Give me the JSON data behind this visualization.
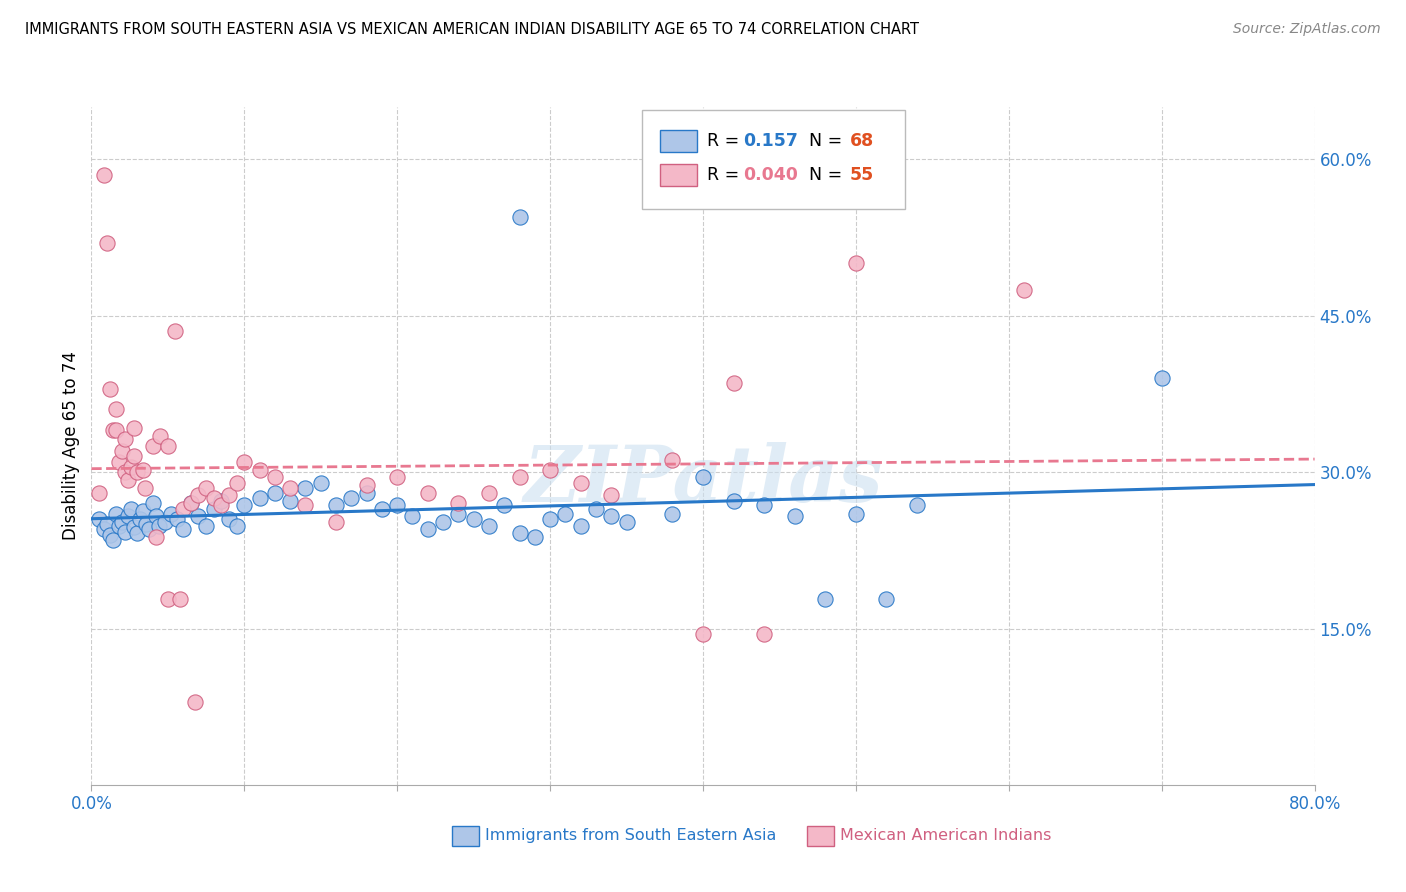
{
  "title": "IMMIGRANTS FROM SOUTH EASTERN ASIA VS MEXICAN AMERICAN INDIAN DISABILITY AGE 65 TO 74 CORRELATION CHART",
  "source": "Source: ZipAtlas.com",
  "ylabel": "Disability Age 65 to 74",
  "xlim": [
    0.0,
    0.8
  ],
  "ylim": [
    0.0,
    0.65
  ],
  "xtick_positions": [
    0.0,
    0.1,
    0.2,
    0.3,
    0.4,
    0.5,
    0.6,
    0.7,
    0.8
  ],
  "xticklabels": [
    "0.0%",
    "",
    "",
    "",
    "",
    "",
    "",
    "",
    "80.0%"
  ],
  "ytick_positions": [
    0.15,
    0.3,
    0.45,
    0.6
  ],
  "yticklabels_right": [
    "15.0%",
    "30.0%",
    "45.0%",
    "60.0%"
  ],
  "blue_color": "#aec6e8",
  "pink_color": "#f4b8c8",
  "blue_line_color": "#2878c8",
  "pink_line_color": "#e87890",
  "pink_edge_color": "#d06080",
  "legend_blue_R": "0.157",
  "legend_blue_N": "68",
  "legend_pink_R": "0.040",
  "legend_pink_N": "55",
  "watermark": "ZIPatlas",
  "grid_color": "#cccccc",
  "blue_scatter_x": [
    0.005,
    0.008,
    0.01,
    0.012,
    0.014,
    0.016,
    0.018,
    0.02,
    0.022,
    0.024,
    0.026,
    0.028,
    0.03,
    0.032,
    0.034,
    0.036,
    0.038,
    0.04,
    0.042,
    0.044,
    0.048,
    0.052,
    0.056,
    0.06,
    0.065,
    0.07,
    0.075,
    0.08,
    0.085,
    0.09,
    0.095,
    0.1,
    0.11,
    0.12,
    0.13,
    0.14,
    0.15,
    0.16,
    0.17,
    0.18,
    0.19,
    0.2,
    0.21,
    0.22,
    0.23,
    0.24,
    0.25,
    0.26,
    0.27,
    0.28,
    0.29,
    0.3,
    0.31,
    0.32,
    0.33,
    0.34,
    0.35,
    0.38,
    0.4,
    0.42,
    0.44,
    0.46,
    0.48,
    0.5,
    0.52,
    0.54,
    0.28,
    0.7
  ],
  "blue_scatter_y": [
    0.255,
    0.245,
    0.25,
    0.24,
    0.235,
    0.26,
    0.248,
    0.252,
    0.243,
    0.258,
    0.265,
    0.247,
    0.242,
    0.255,
    0.263,
    0.25,
    0.245,
    0.27,
    0.258,
    0.248,
    0.252,
    0.26,
    0.255,
    0.245,
    0.27,
    0.258,
    0.248,
    0.265,
    0.272,
    0.255,
    0.248,
    0.268,
    0.275,
    0.28,
    0.272,
    0.285,
    0.29,
    0.268,
    0.275,
    0.28,
    0.265,
    0.268,
    0.258,
    0.245,
    0.252,
    0.26,
    0.255,
    0.248,
    0.268,
    0.242,
    0.238,
    0.255,
    0.26,
    0.248,
    0.265,
    0.258,
    0.252,
    0.26,
    0.295,
    0.272,
    0.268,
    0.258,
    0.178,
    0.26,
    0.178,
    0.268,
    0.545,
    0.39
  ],
  "pink_scatter_x": [
    0.005,
    0.008,
    0.01,
    0.012,
    0.014,
    0.016,
    0.018,
    0.02,
    0.022,
    0.024,
    0.026,
    0.028,
    0.03,
    0.035,
    0.04,
    0.045,
    0.05,
    0.055,
    0.06,
    0.065,
    0.07,
    0.075,
    0.08,
    0.085,
    0.09,
    0.095,
    0.1,
    0.11,
    0.12,
    0.13,
    0.14,
    0.16,
    0.18,
    0.2,
    0.22,
    0.24,
    0.26,
    0.28,
    0.3,
    0.32,
    0.34,
    0.38,
    0.4,
    0.42,
    0.44,
    0.016,
    0.022,
    0.028,
    0.034,
    0.042,
    0.05,
    0.058,
    0.068,
    0.5,
    0.61
  ],
  "pink_scatter_y": [
    0.28,
    0.585,
    0.52,
    0.38,
    0.34,
    0.36,
    0.31,
    0.32,
    0.3,
    0.292,
    0.305,
    0.315,
    0.3,
    0.285,
    0.325,
    0.335,
    0.325,
    0.435,
    0.265,
    0.27,
    0.278,
    0.285,
    0.275,
    0.268,
    0.278,
    0.29,
    0.31,
    0.302,
    0.295,
    0.285,
    0.268,
    0.252,
    0.288,
    0.295,
    0.28,
    0.27,
    0.28,
    0.295,
    0.302,
    0.29,
    0.278,
    0.312,
    0.145,
    0.385,
    0.145,
    0.34,
    0.332,
    0.342,
    0.302,
    0.238,
    0.178,
    0.178,
    0.08,
    0.5,
    0.475
  ]
}
